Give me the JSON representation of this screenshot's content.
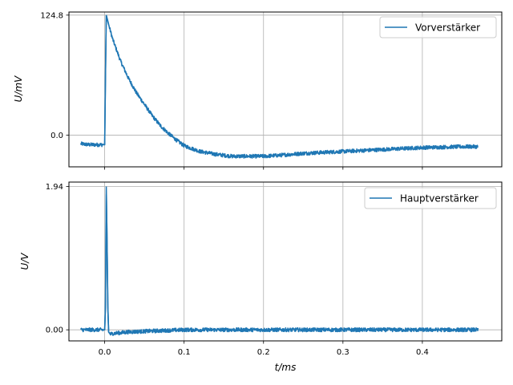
{
  "chart_data": [
    {
      "type": "line",
      "title": "",
      "xlabel": "",
      "ylabel": "U/mV",
      "xlim": [
        -0.045,
        0.5
      ],
      "ylim": [
        -33,
        128
      ],
      "xticks": [
        0.0,
        0.1,
        0.2,
        0.3,
        0.4
      ],
      "xtick_labels_visible": false,
      "yticks": [
        0.0,
        124.8
      ],
      "ytick_labels": [
        "0.0",
        "124.8"
      ],
      "grid": true,
      "legend_position": "top-right",
      "series": [
        {
          "name": "Vorverstärker",
          "color": "#1f77b4",
          "x": [
            -0.03,
            -0.02,
            -0.01,
            0.0,
            0.001,
            0.002,
            0.005,
            0.01,
            0.02,
            0.03,
            0.04,
            0.05,
            0.06,
            0.07,
            0.08,
            0.09,
            0.1,
            0.12,
            0.14,
            0.16,
            0.18,
            0.2,
            0.22,
            0.25,
            0.3,
            0.35,
            0.4,
            0.45,
            0.47
          ],
          "y": [
            -9,
            -10,
            -10,
            -10,
            60,
            124.8,
            115,
            100,
            77,
            59,
            44,
            32,
            20,
            10,
            2,
            -5,
            -11,
            -17,
            -20,
            -22,
            -22,
            -22,
            -21,
            -19,
            -17,
            -15,
            -13,
            -12,
            -12
          ]
        }
      ]
    },
    {
      "type": "line",
      "title": "",
      "xlabel": "t/ms",
      "ylabel": "U/V",
      "xlim": [
        -0.045,
        0.5
      ],
      "ylim": [
        -0.15,
        2.0
      ],
      "xticks": [
        0.0,
        0.1,
        0.2,
        0.3,
        0.4
      ],
      "xtick_labels": [
        "0.0",
        "0.1",
        "0.2",
        "0.3",
        "0.4"
      ],
      "yticks": [
        0.0,
        1.94
      ],
      "ytick_labels": [
        "0.00",
        "1.94"
      ],
      "grid": true,
      "legend_position": "top-right",
      "series": [
        {
          "name": "Hauptverstärker",
          "color": "#1f77b4",
          "x": [
            -0.03,
            -0.02,
            -0.01,
            0.0,
            0.001,
            0.002,
            0.003,
            0.004,
            0.005,
            0.007,
            0.01,
            0.02,
            0.03,
            0.05,
            0.1,
            0.2,
            0.3,
            0.4,
            0.47
          ],
          "y": [
            0.0,
            0.0,
            0.0,
            0.0,
            0.3,
            1.94,
            1.2,
            0.3,
            -0.03,
            -0.06,
            -0.05,
            -0.04,
            -0.03,
            -0.02,
            0.0,
            0.0,
            0.0,
            0.0,
            0.0
          ]
        }
      ]
    }
  ]
}
